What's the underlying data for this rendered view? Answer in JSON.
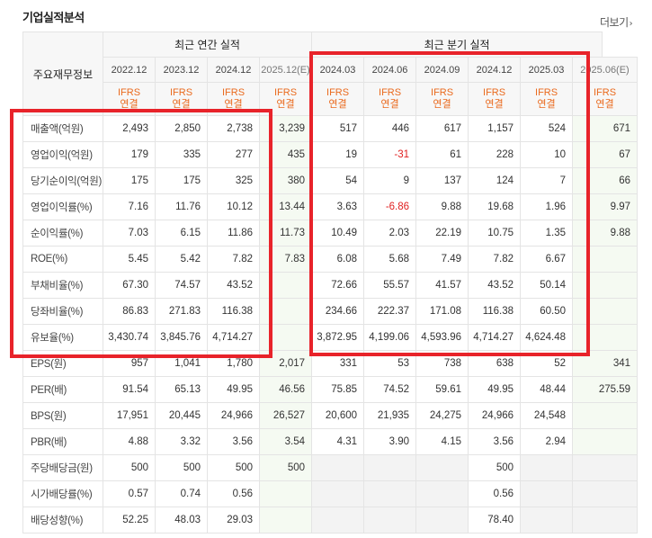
{
  "section": {
    "title": "기업실적분석",
    "more_label": "더보기",
    "more_arrow": "›"
  },
  "header": {
    "row_label": "주요재무정보",
    "group_annual": "최근 연간 실적",
    "group_quarter": "최근 분기 실적",
    "periods": [
      "2022.12",
      "2023.12",
      "2024.12",
      "2025.12(E)",
      "2024.03",
      "2024.06",
      "2024.09",
      "2024.12",
      "2025.03",
      "2025.06(E)"
    ],
    "ifrs_top": "IFRS",
    "ifrs_bottom": "연결"
  },
  "rows": [
    {
      "label": "매출액(억원)",
      "values": [
        "2,493",
        "2,850",
        "2,738",
        "3,239",
        "517",
        "446",
        "617",
        "1,157",
        "524",
        "671"
      ]
    },
    {
      "label": "영업이익(억원)",
      "values": [
        "179",
        "335",
        "277",
        "435",
        "19",
        "-31",
        "61",
        "228",
        "10",
        "67"
      ]
    },
    {
      "label": "당기순이익(억원)",
      "values": [
        "175",
        "175",
        "325",
        "380",
        "54",
        "9",
        "137",
        "124",
        "7",
        "66"
      ]
    },
    {
      "label": "영업이익률(%)",
      "values": [
        "7.16",
        "11.76",
        "10.12",
        "13.44",
        "3.63",
        "-6.86",
        "9.88",
        "19.68",
        "1.96",
        "9.97"
      ]
    },
    {
      "label": "순이익률(%)",
      "values": [
        "7.03",
        "6.15",
        "11.86",
        "11.73",
        "10.49",
        "2.03",
        "22.19",
        "10.75",
        "1.35",
        "9.88"
      ]
    },
    {
      "label": "ROE(%)",
      "values": [
        "5.45",
        "5.42",
        "7.82",
        "7.83",
        "6.08",
        "5.68",
        "7.49",
        "7.82",
        "6.67",
        ""
      ]
    },
    {
      "label": "부채비율(%)",
      "values": [
        "67.30",
        "74.57",
        "43.52",
        "",
        "72.66",
        "55.57",
        "41.57",
        "43.52",
        "50.14",
        ""
      ]
    },
    {
      "label": "당좌비율(%)",
      "values": [
        "86.83",
        "271.83",
        "116.38",
        "",
        "234.66",
        "222.37",
        "171.08",
        "116.38",
        "60.50",
        ""
      ]
    },
    {
      "label": "유보율(%)",
      "values": [
        "3,430.74",
        "3,845.76",
        "4,714.27",
        "",
        "3,872.95",
        "4,199.06",
        "4,593.96",
        "4,714.27",
        "4,624.48",
        ""
      ]
    },
    {
      "label": "EPS(원)",
      "values": [
        "957",
        "1,041",
        "1,780",
        "2,017",
        "331",
        "53",
        "738",
        "638",
        "52",
        "341"
      ]
    },
    {
      "label": "PER(배)",
      "values": [
        "91.54",
        "65.13",
        "49.95",
        "46.56",
        "75.85",
        "74.52",
        "59.61",
        "49.95",
        "48.44",
        "275.59"
      ]
    },
    {
      "label": "BPS(원)",
      "values": [
        "17,951",
        "20,445",
        "24,966",
        "26,527",
        "20,600",
        "21,935",
        "24,275",
        "24,966",
        "24,548",
        ""
      ]
    },
    {
      "label": "PBR(배)",
      "values": [
        "4.88",
        "3.32",
        "3.56",
        "3.54",
        "4.31",
        "3.90",
        "4.15",
        "3.56",
        "2.94",
        ""
      ]
    },
    {
      "label": "주당배당금(원)",
      "values": [
        "500",
        "500",
        "500",
        "500",
        "",
        "",
        "",
        "500",
        "",
        ""
      ]
    },
    {
      "label": "시가배당률(%)",
      "values": [
        "0.57",
        "0.74",
        "0.56",
        "",
        "",
        "",
        "",
        "0.56",
        "",
        ""
      ]
    },
    {
      "label": "배당성향(%)",
      "values": [
        "52.25",
        "48.03",
        "29.03",
        "",
        "",
        "",
        "",
        "78.40",
        "",
        ""
      ]
    }
  ],
  "colors": {
    "accent_orange": "#ea6a1e",
    "negative_red": "#e02020",
    "highlight_box": "#e8232a"
  }
}
